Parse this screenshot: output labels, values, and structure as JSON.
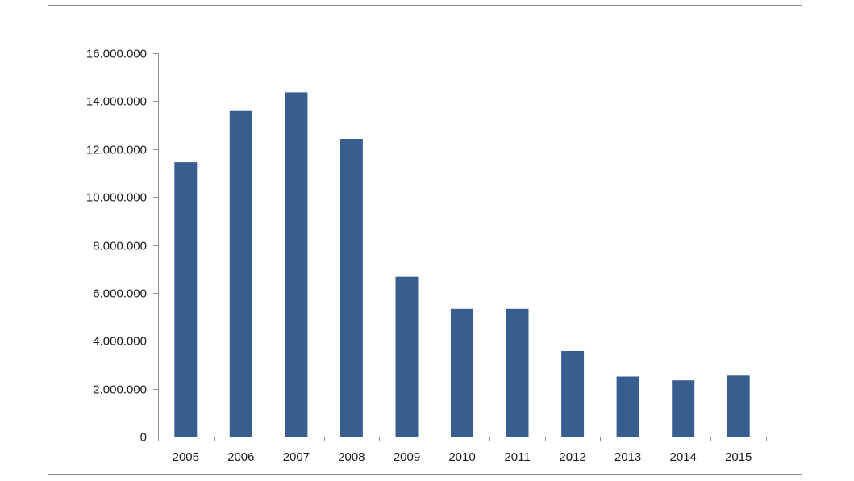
{
  "chart_data": {
    "type": "bar",
    "categories": [
      "2005",
      "2006",
      "2007",
      "2008",
      "2009",
      "2010",
      "2011",
      "2012",
      "2013",
      "2014",
      "2015"
    ],
    "series": [
      {
        "values": [
          11450000,
          13620000,
          14370000,
          12430000,
          6680000,
          5330000,
          5330000,
          3570000,
          2510000,
          2350000,
          2550000
        ]
      }
    ],
    "y_ticks": [
      "0",
      "2.000.000",
      "4.000.000",
      "6.000.000",
      "8.000.000",
      "10.000.000",
      "12.000.000",
      "14.000.000",
      "16.000.000"
    ],
    "ylim": [
      0,
      16000000
    ],
    "y_tick_step": 2000000,
    "title": "",
    "xlabel": "",
    "ylabel": "",
    "grid": false,
    "legend": "none",
    "bar_color": "#385d8f",
    "axis_color": "#8c8c8c",
    "border_color": "#8c8c8c"
  }
}
